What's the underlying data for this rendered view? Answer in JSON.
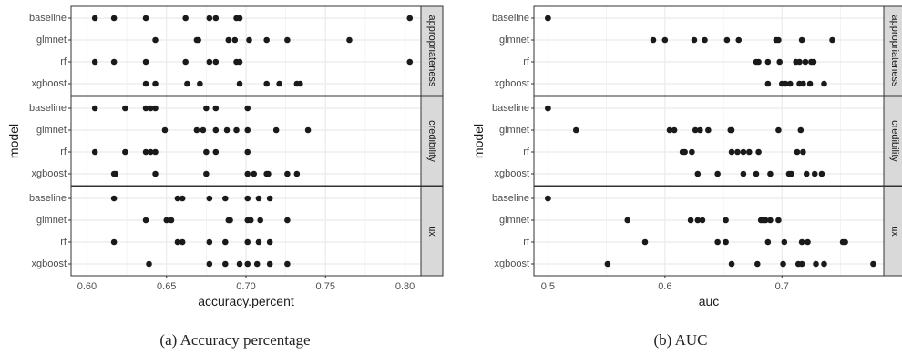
{
  "captions": [
    "(a)  Accuracy percentage",
    "(b)  AUC"
  ],
  "colors": {
    "point": "#1a1a1a",
    "strip_fill": "#d9d9d9",
    "panel_border": "#333333",
    "grid": "#ebebeb",
    "text": "#1a1a1a",
    "axis_text": "#4d4d4d"
  },
  "chart_data": [
    {
      "type": "scatter",
      "xlabel": "accuracy.percent",
      "ylabel": "model",
      "xlim": [
        0.59,
        0.81
      ],
      "xticks": [
        0.6,
        0.65,
        0.7,
        0.75,
        0.8
      ],
      "xtick_labels": [
        "0.60",
        "0.65",
        "0.70",
        "0.75",
        "0.80"
      ],
      "categories": [
        "baseline",
        "glmnet",
        "rf",
        "xgboost"
      ],
      "facets": [
        {
          "name": "appropriateness",
          "points": {
            "baseline": [
              0.605,
              0.617,
              0.637,
              0.662,
              0.677,
              0.681,
              0.694,
              0.696,
              0.803
            ],
            "glmnet": [
              0.643,
              0.669,
              0.67,
              0.689,
              0.693,
              0.702,
              0.713,
              0.726,
              0.765
            ],
            "rf": [
              0.605,
              0.617,
              0.637,
              0.662,
              0.677,
              0.681,
              0.694,
              0.696,
              0.803
            ],
            "xgboost": [
              0.637,
              0.643,
              0.663,
              0.671,
              0.696,
              0.713,
              0.721,
              0.732,
              0.734
            ]
          }
        },
        {
          "name": "credibility",
          "points": {
            "baseline": [
              0.605,
              0.624,
              0.637,
              0.64,
              0.643,
              0.675,
              0.681,
              0.701
            ],
            "glmnet": [
              0.649,
              0.669,
              0.673,
              0.681,
              0.688,
              0.694,
              0.701,
              0.719,
              0.739
            ],
            "rf": [
              0.605,
              0.624,
              0.637,
              0.64,
              0.643,
              0.675,
              0.681,
              0.701
            ],
            "xgboost": [
              0.617,
              0.618,
              0.643,
              0.675,
              0.701,
              0.705,
              0.713,
              0.714,
              0.726,
              0.732
            ]
          }
        },
        {
          "name": "ux",
          "points": {
            "baseline": [
              0.617,
              0.657,
              0.66,
              0.677,
              0.687,
              0.701,
              0.708,
              0.715
            ],
            "glmnet": [
              0.637,
              0.65,
              0.653,
              0.689,
              0.69,
              0.701,
              0.703,
              0.709,
              0.726
            ],
            "rf": [
              0.617,
              0.657,
              0.66,
              0.677,
              0.687,
              0.701,
              0.708,
              0.715
            ],
            "xgboost": [
              0.639,
              0.677,
              0.687,
              0.696,
              0.701,
              0.707,
              0.715,
              0.726
            ]
          }
        }
      ]
    },
    {
      "type": "scatter",
      "xlabel": "auc",
      "ylabel": "model",
      "xlim": [
        0.488,
        0.787
      ],
      "xticks": [
        0.5,
        0.6,
        0.7
      ],
      "xtick_labels": [
        "0.5",
        "0.6",
        "0.7"
      ],
      "categories": [
        "baseline",
        "glmnet",
        "rf",
        "xgboost"
      ],
      "facets": [
        {
          "name": "appropriateness",
          "points": {
            "baseline": [
              0.5,
              0.5
            ],
            "glmnet": [
              0.59,
              0.6,
              0.625,
              0.634,
              0.653,
              0.663,
              0.695,
              0.697,
              0.717,
              0.743
            ],
            "rf": [
              0.678,
              0.68,
              0.688,
              0.698,
              0.712,
              0.715,
              0.72,
              0.725,
              0.727
            ],
            "xgboost": [
              0.688,
              0.7,
              0.703,
              0.707,
              0.715,
              0.718,
              0.724,
              0.736
            ]
          }
        },
        {
          "name": "credibility",
          "points": {
            "baseline": [
              0.5,
              0.5
            ],
            "glmnet": [
              0.524,
              0.604,
              0.608,
              0.626,
              0.63,
              0.637,
              0.656,
              0.657,
              0.697,
              0.716
            ],
            "rf": [
              0.615,
              0.617,
              0.623,
              0.657,
              0.662,
              0.667,
              0.672,
              0.68,
              0.713,
              0.718
            ],
            "xgboost": [
              0.628,
              0.645,
              0.667,
              0.678,
              0.69,
              0.706,
              0.708,
              0.721,
              0.728,
              0.734
            ]
          }
        },
        {
          "name": "ux",
          "points": {
            "baseline": [
              0.5,
              0.5
            ],
            "glmnet": [
              0.568,
              0.622,
              0.628,
              0.632,
              0.652,
              0.682,
              0.684,
              0.686,
              0.69,
              0.697
            ],
            "rf": [
              0.583,
              0.645,
              0.652,
              0.688,
              0.702,
              0.717,
              0.722,
              0.752,
              0.754
            ],
            "xgboost": [
              0.551,
              0.657,
              0.679,
              0.701,
              0.714,
              0.717,
              0.729,
              0.736,
              0.778
            ]
          }
        }
      ]
    }
  ]
}
